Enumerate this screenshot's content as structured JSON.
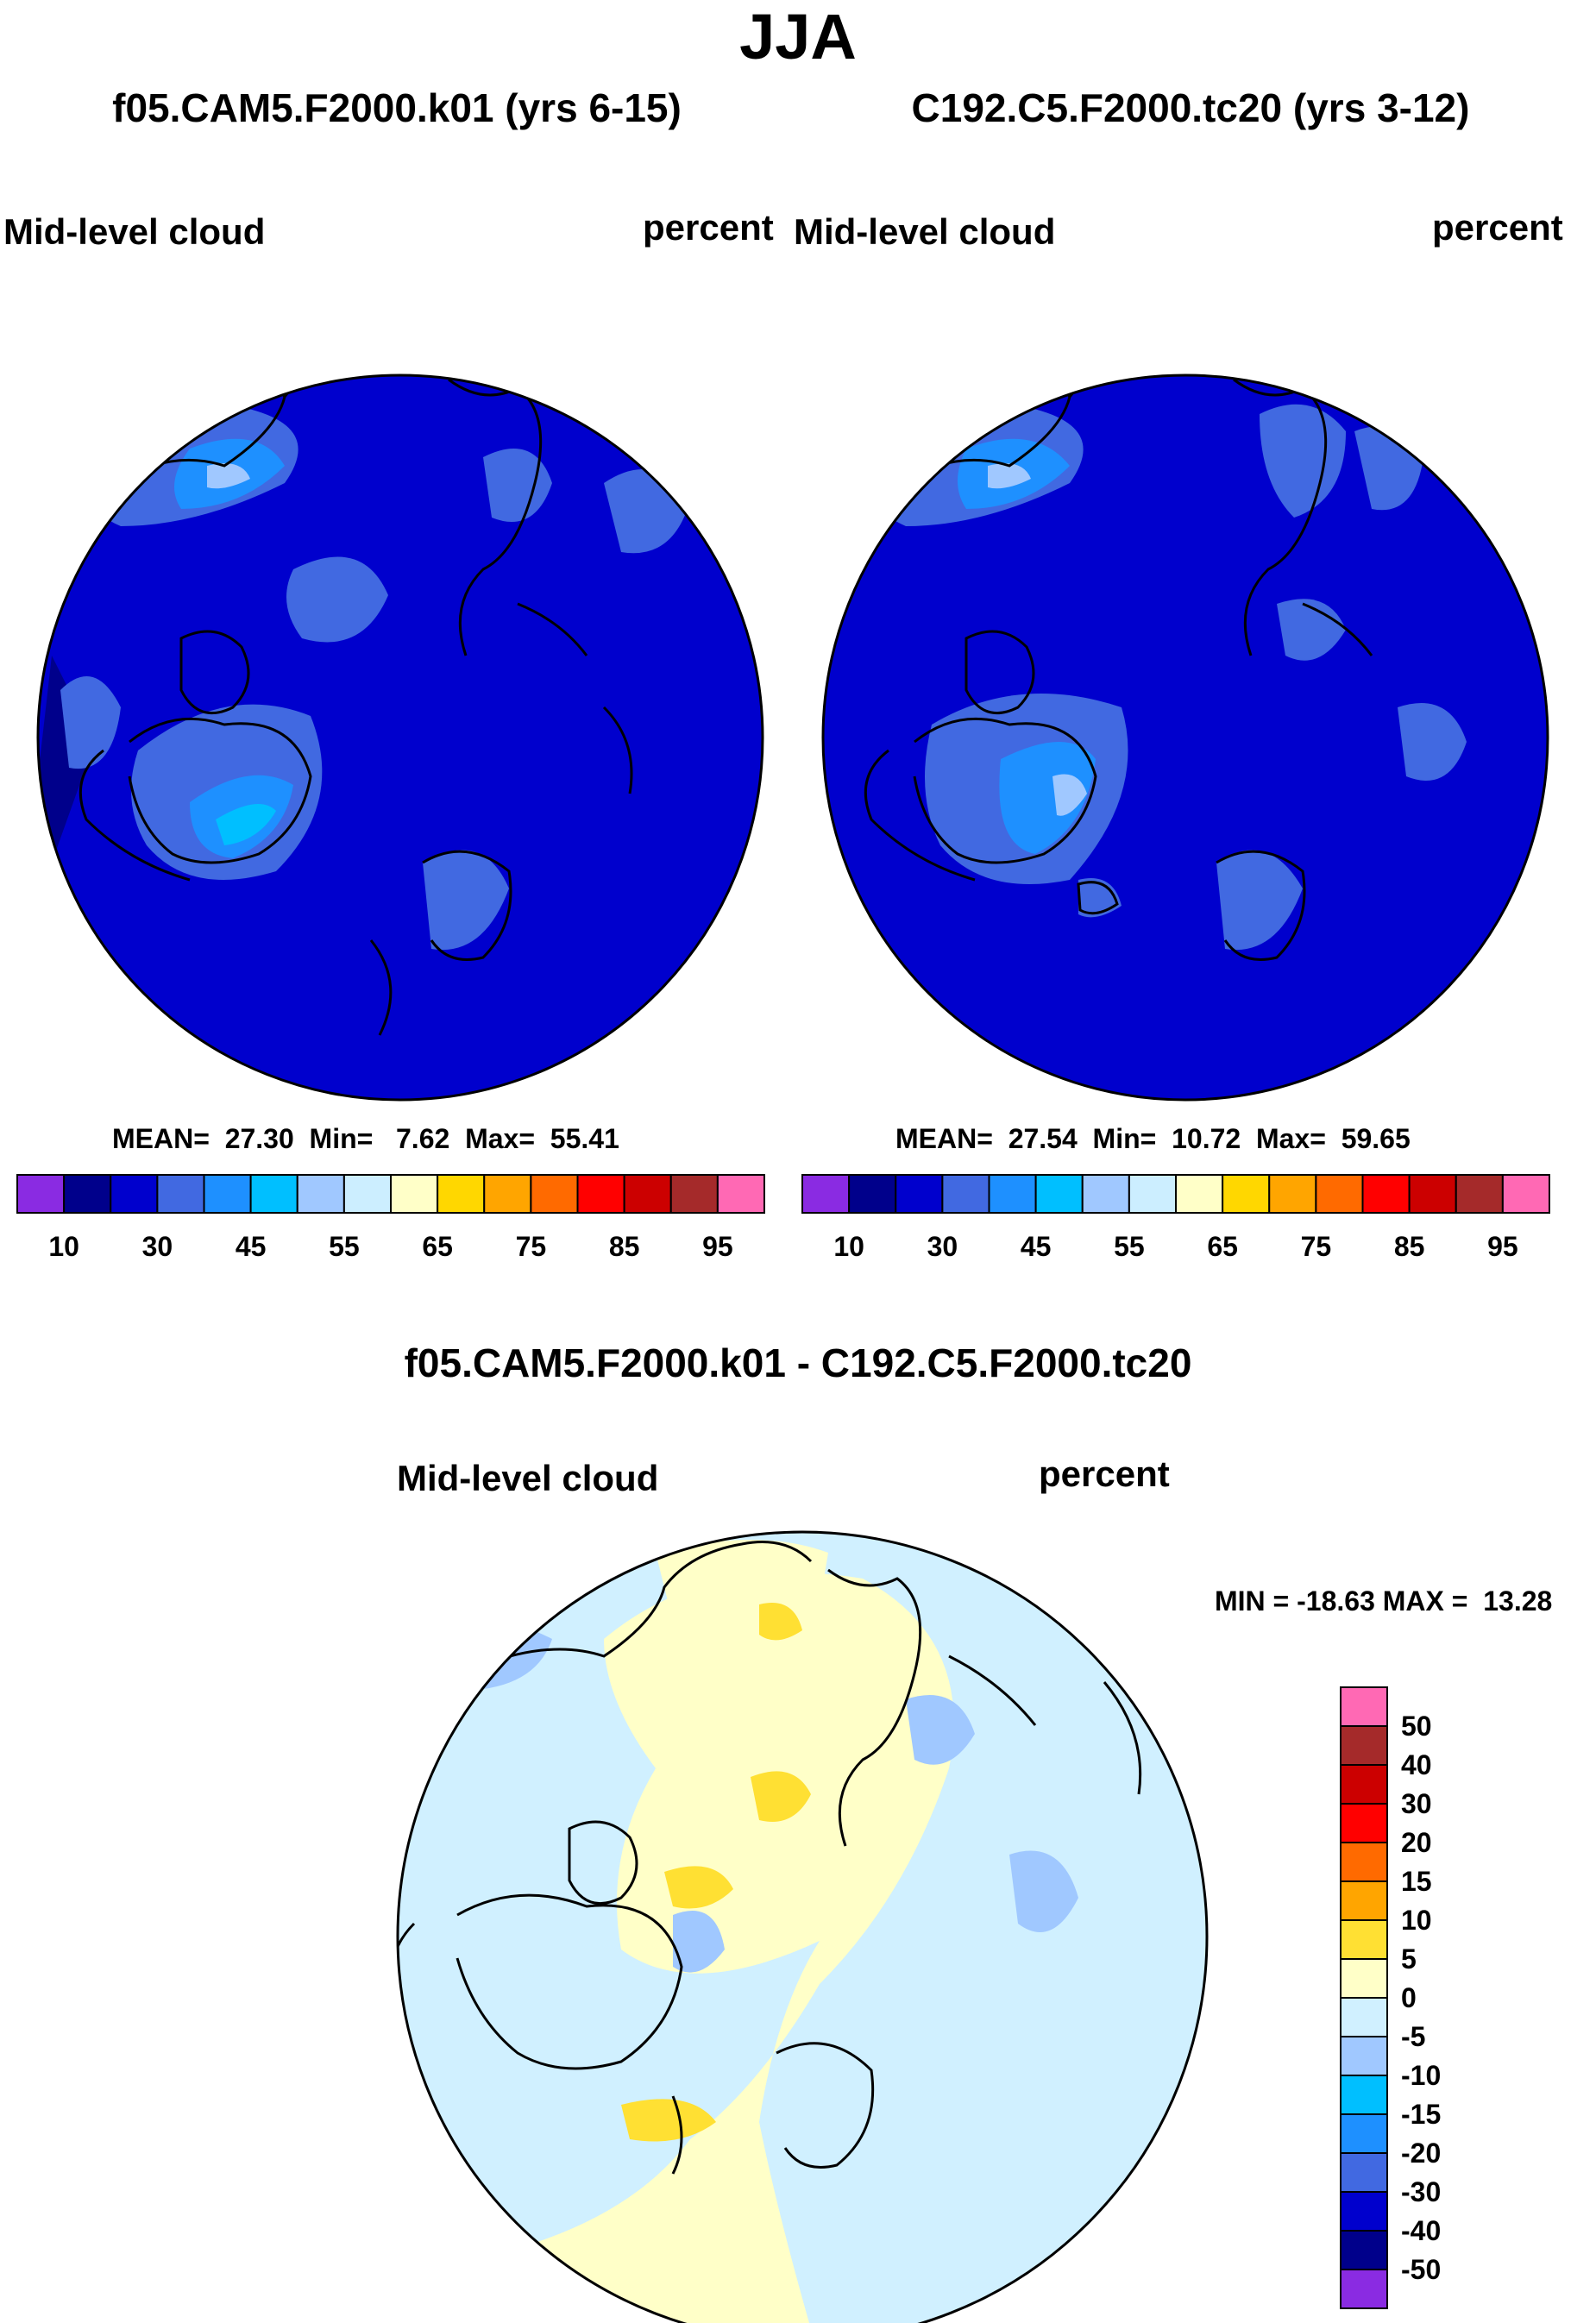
{
  "title": "JJA",
  "variable": "Mid-level cloud",
  "units": "percent",
  "panels": [
    {
      "title": "f05.CAM5.F2000.k01 (yrs 6-15)",
      "stats": "MEAN=  27.30  Min=   7.62  Max=  55.41"
    },
    {
      "title": "C192.C5.F2000.tc20 (yrs 3-12)",
      "stats": "MEAN=  27.54  Min=  10.72  Max=  59.65"
    }
  ],
  "diff_panel": {
    "title": "f05.CAM5.F2000.k01 - C192.C5.F2000.tc20",
    "stats": "MIN = -18.63 MAX =  13.28"
  },
  "chart_data": [
    {
      "type": "heatmap",
      "projection": "north polar stereographic",
      "title": "f05.CAM5.F2000.k01 (yrs 6-15)",
      "variable": "Mid-level cloud",
      "units": "percent",
      "mean": 27.3,
      "min": 7.62,
      "max": 55.41,
      "colorbar_levels": [
        10,
        30,
        45,
        55,
        65,
        75,
        85,
        95
      ],
      "colorbar_colors": [
        "#8a2be2",
        "#00008b",
        "#0000cd",
        "#4169e1",
        "#1e90ff",
        "#00bfff",
        "#a0c8ff",
        "#cceeff",
        "#ffffc8",
        "#ffd700",
        "#ffa500",
        "#ff6a00",
        "#ff0000",
        "#cc0000",
        "#a52a2a",
        "#ff69b4"
      ]
    },
    {
      "type": "heatmap",
      "projection": "north polar stereographic",
      "title": "C192.C5.F2000.tc20 (yrs 3-12)",
      "variable": "Mid-level cloud",
      "units": "percent",
      "mean": 27.54,
      "min": 10.72,
      "max": 59.65,
      "colorbar_levels": [
        10,
        30,
        45,
        55,
        65,
        75,
        85,
        95
      ],
      "colorbar_colors": [
        "#8a2be2",
        "#00008b",
        "#0000cd",
        "#4169e1",
        "#1e90ff",
        "#00bfff",
        "#a0c8ff",
        "#cceeff",
        "#ffffc8",
        "#ffd700",
        "#ffa500",
        "#ff6a00",
        "#ff0000",
        "#cc0000",
        "#a52a2a",
        "#ff69b4"
      ]
    },
    {
      "type": "heatmap",
      "projection": "north polar stereographic",
      "title": "f05.CAM5.F2000.k01 - C192.C5.F2000.tc20",
      "variable": "Mid-level cloud",
      "units": "percent",
      "min": -18.63,
      "max": 13.28,
      "colorbar_levels": [
        50,
        40,
        30,
        20,
        15,
        10,
        5,
        0,
        -5,
        -10,
        -15,
        -20,
        -30,
        -40,
        -50
      ],
      "colorbar_colors": [
        "#ff69b4",
        "#a52a2a",
        "#cc0000",
        "#ff0000",
        "#ff6a00",
        "#ffa500",
        "#ffe033",
        "#ffffc8",
        "#d0f0ff",
        "#a0c8ff",
        "#00bfff",
        "#1e90ff",
        "#4169e1",
        "#0000cd",
        "#00008b",
        "#8a2be2"
      ]
    }
  ]
}
